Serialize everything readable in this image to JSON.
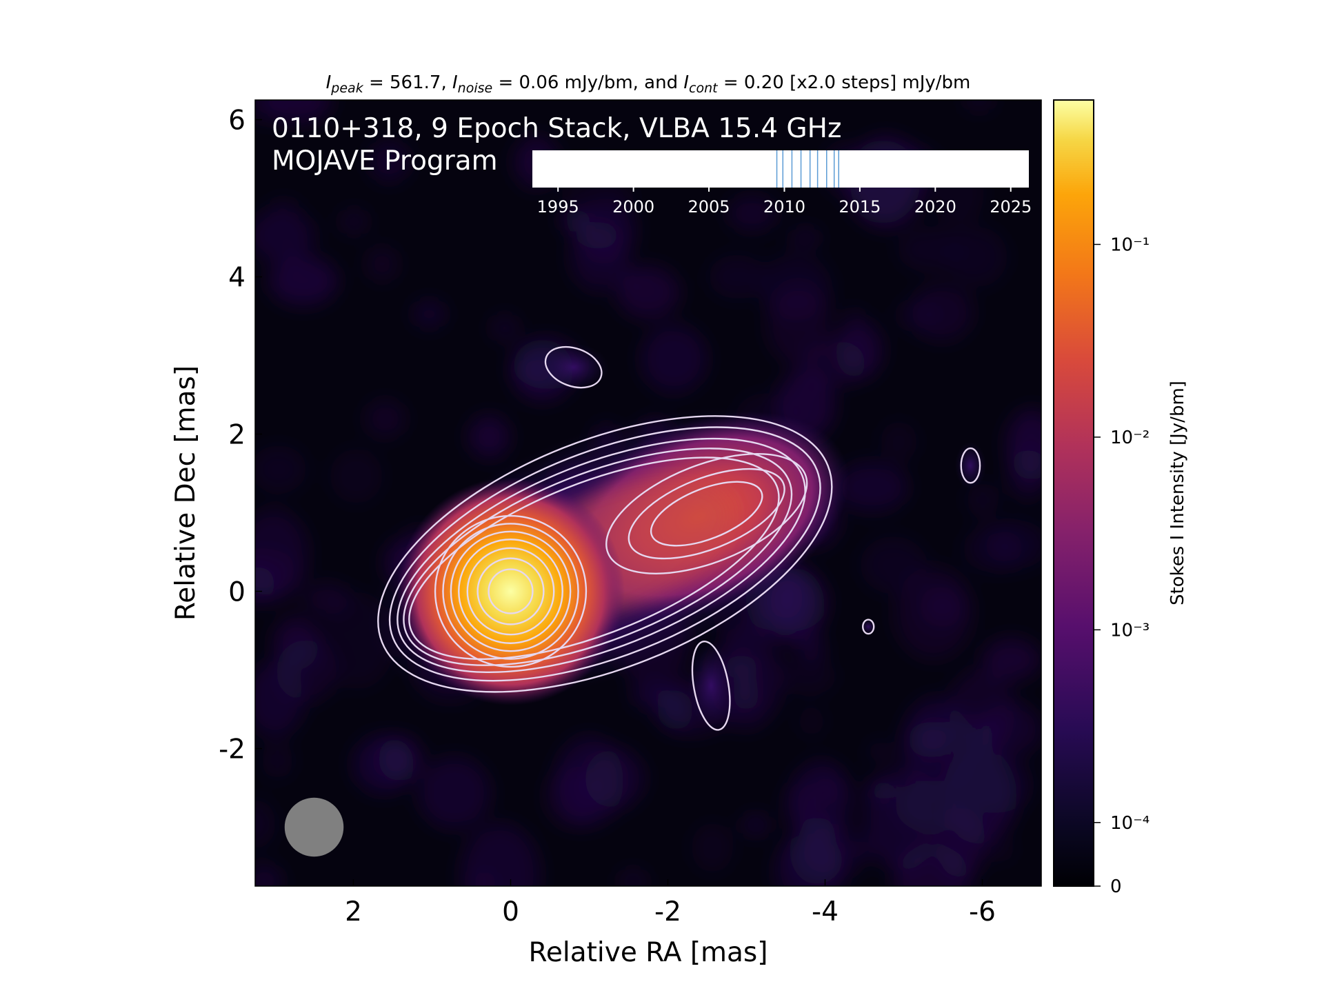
{
  "header": {
    "parts": [
      {
        "text": "I",
        "italic": true
      },
      {
        "text": "peak",
        "italic": true,
        "sub": true
      },
      {
        "text": " = 561.7, "
      },
      {
        "text": "I",
        "italic": true
      },
      {
        "text": "noise",
        "italic": true,
        "sub": true
      },
      {
        "text": " = 0.06 mJy/bm, and "
      },
      {
        "text": "I",
        "italic": true
      },
      {
        "text": "cont",
        "italic": true,
        "sub": true
      },
      {
        "text": " = 0.20 [x2.0 steps] mJy/bm"
      }
    ]
  },
  "overlay": {
    "line1": "0110+318, 9 Epoch Stack, VLBA 15.4 GHz",
    "line2": "MOJAVE Program"
  },
  "chart_data": {
    "type": "heatmap",
    "title": "",
    "xlabel": "Relative RA [mas]",
    "ylabel": "Relative Dec [mas]",
    "xlim": [
      3.25,
      -6.75
    ],
    "ylim": [
      -3.75,
      6.25
    ],
    "xticks": [
      2,
      0,
      -2,
      -4,
      -6
    ],
    "yticks": [
      -2,
      0,
      2,
      4,
      6
    ],
    "components": [
      {
        "name": "core",
        "x": 0.0,
        "y": 0.0,
        "peak_jy_bm": 0.5617
      },
      {
        "name": "jet",
        "x": -2.4,
        "y": 0.95,
        "peak_jy_bm": 0.012
      }
    ],
    "beam": {
      "x": 2.5,
      "y": -3.0,
      "diameter_mas": 0.75,
      "color": "#808080"
    },
    "contours": {
      "base_jy_bm": 0.0002,
      "step_factor": 2.0,
      "levels_jy_bm": [
        0.0002,
        0.0004,
        0.0008,
        0.0016,
        0.0032,
        0.0064,
        0.0128,
        0.0256,
        0.0512,
        0.1024,
        0.2048,
        0.4096
      ],
      "color": "#e6d8f0"
    },
    "colorbar": {
      "label": "Stokes I Intensity [Jy/bm]",
      "colormap": "inferno",
      "scale": "log",
      "ticks": [
        {
          "value": 0,
          "label": "0"
        },
        {
          "value": 0.0001,
          "label": "10⁻⁴"
        },
        {
          "value": 0.001,
          "label": "10⁻³"
        },
        {
          "value": 0.01,
          "label": "10⁻²"
        },
        {
          "value": 0.1,
          "label": "10⁻¹"
        }
      ],
      "vmax": 0.5617
    },
    "epoch_timeline": {
      "xlim": [
        1993.3,
        2026.2
      ],
      "ticks": [
        1995,
        2000,
        2005,
        2010,
        2015,
        2020,
        2025
      ],
      "epochs": [
        2009.5,
        2009.9,
        2010.5,
        2011.1,
        2011.7,
        2012.2,
        2012.8,
        2013.3,
        2013.6
      ],
      "color": "#5b9bd5"
    }
  }
}
